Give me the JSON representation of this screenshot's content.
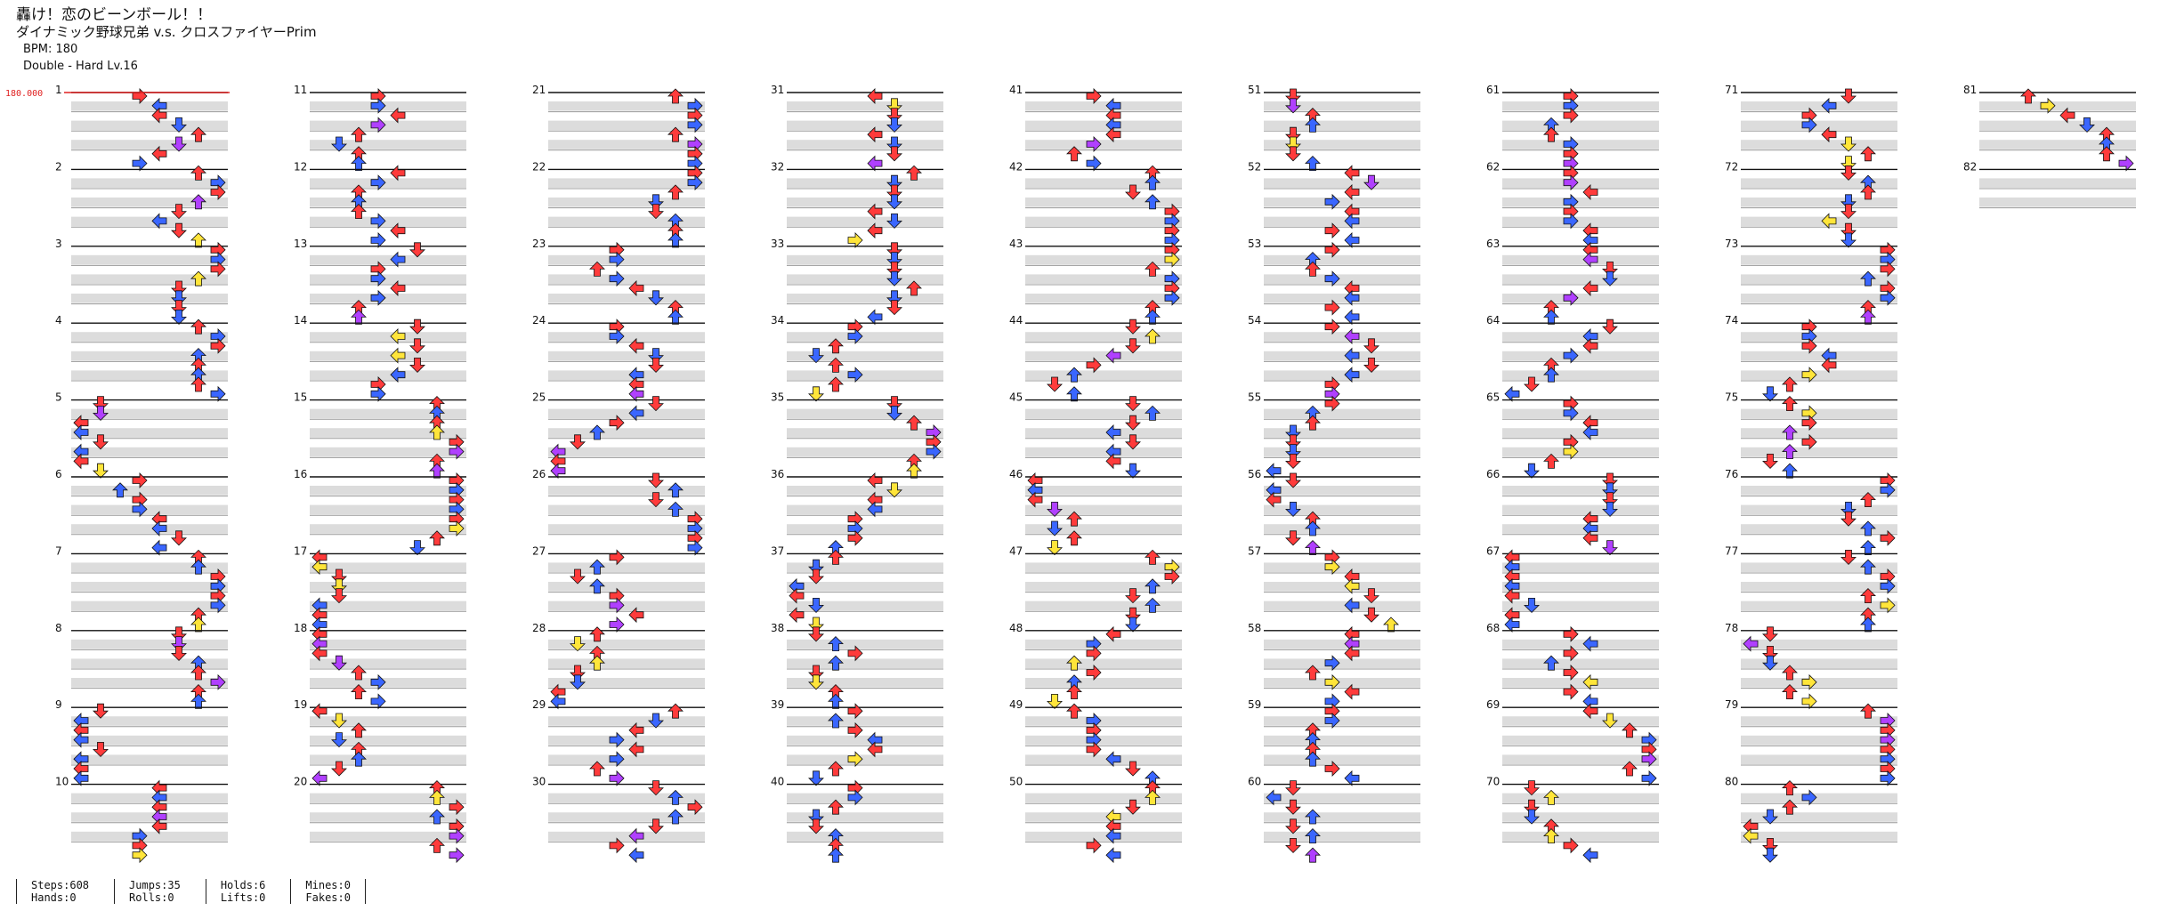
{
  "song": {
    "title": "轟け！恋のビーンボール！！",
    "artist": "ダイナミック野球兄弟 v.s. クロスファイヤーPrim",
    "bpm_label": "BPM: 180",
    "difficulty_label": "Double - Hard  Lv.16"
  },
  "chart": {
    "bpm_marker": "180.000",
    "measure_numbers": [
      "1",
      "2",
      "3",
      "4",
      "5",
      "6",
      "7",
      "8",
      "9",
      "10",
      "11",
      "12",
      "13",
      "14",
      "15",
      "16",
      "17",
      "18",
      "19",
      "20",
      "21",
      "22",
      "23",
      "24",
      "25",
      "26",
      "27",
      "28",
      "29",
      "30",
      "31",
      "32",
      "33",
      "34",
      "35",
      "36",
      "37",
      "38",
      "39",
      "40",
      "41",
      "42",
      "43",
      "44",
      "45",
      "46",
      "47",
      "48",
      "49",
      "50",
      "51",
      "52",
      "53",
      "54",
      "55",
      "56",
      "57",
      "58",
      "59",
      "60",
      "61",
      "62",
      "63",
      "64",
      "65",
      "66",
      "67",
      "68",
      "69",
      "70",
      "71",
      "72",
      "73",
      "74",
      "75",
      "76",
      "77",
      "78",
      "79",
      "80",
      "81",
      "82"
    ],
    "colors": {
      "quarter": "#ff3b3b",
      "eighth": "#3a66ff",
      "twelfth": "#b040ff",
      "sixteenth": "#ffe53a",
      "hold": "#6fd66f",
      "band": "#dcdcdc",
      "bpm": "#e02020"
    }
  },
  "stats": {
    "steps": "Steps:608",
    "hands": "Hands:0",
    "jumps": "Jumps:35",
    "rolls": "Rolls:0",
    "holds": "Holds:6",
    "lifts": "Lifts:0",
    "mines": "Mines:0",
    "fakes": "Fakes:0"
  }
}
